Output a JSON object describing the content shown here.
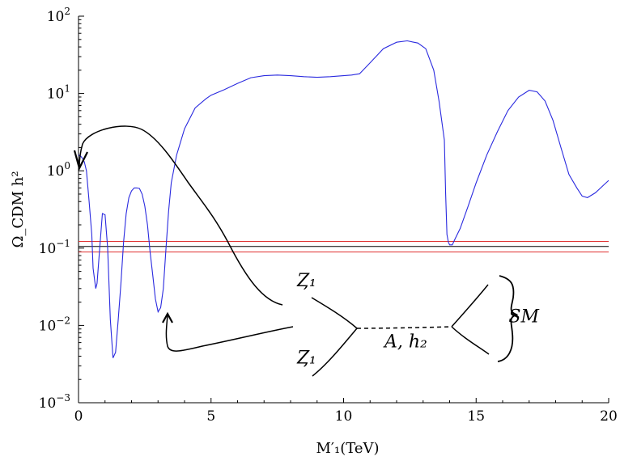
{
  "chart_data": {
    "type": "line",
    "title": "",
    "xlabel": "M′₁(TeV)",
    "ylabel": "Ω_CDM h²",
    "x_scale": "linear",
    "y_scale": "log",
    "xlim": [
      0,
      20
    ],
    "ylim": [
      0.001,
      100
    ],
    "grid": false,
    "x_ticks": [
      {
        "value": 0,
        "label": "0"
      },
      {
        "value": 5,
        "label": "5"
      },
      {
        "value": 10,
        "label": "10"
      },
      {
        "value": 15,
        "label": "15"
      },
      {
        "value": 20,
        "label": "20"
      }
    ],
    "y_ticks": [
      {
        "value": 0.001,
        "base": "10",
        "exp": "−3"
      },
      {
        "value": 0.01,
        "base": "10",
        "exp": "−2"
      },
      {
        "value": 0.1,
        "base": "10",
        "exp": "−1"
      },
      {
        "value": 1,
        "base": "10",
        "exp": "0"
      },
      {
        "value": 10,
        "base": "10",
        "exp": "1"
      },
      {
        "value": 100,
        "base": "10",
        "exp": "2"
      }
    ],
    "horizontal_lines": [
      {
        "y": 0.122,
        "color": "#e03030"
      },
      {
        "y": 0.105,
        "color": "#000000"
      },
      {
        "y": 0.089,
        "color": "#e03030"
      }
    ],
    "series": [
      {
        "color": "#2a2adf",
        "x": [
          0.0,
          0.08,
          0.15,
          0.22,
          0.3,
          0.4,
          0.5,
          0.55,
          0.6,
          0.65,
          0.7,
          0.8,
          0.9,
          1.0,
          1.1,
          1.2,
          1.3,
          1.4,
          1.5,
          1.6,
          1.7,
          1.8,
          1.9,
          2.0,
          2.1,
          2.2,
          2.3,
          2.4,
          2.5,
          2.6,
          2.7,
          2.8,
          2.9,
          3.0,
          3.1,
          3.2,
          3.3,
          3.4,
          3.5,
          3.7,
          4.0,
          4.4,
          4.8,
          5.0,
          5.5,
          6.0,
          6.5,
          7.0,
          7.5,
          8.0,
          8.5,
          9.0,
          9.5,
          10.0,
          10.3,
          10.6,
          11.0,
          11.5,
          12.0,
          12.4,
          12.8,
          13.1,
          13.4,
          13.6,
          13.8,
          13.85,
          13.9,
          13.95,
          14.0,
          14.1,
          14.2,
          14.4,
          14.7,
          15.0,
          15.4,
          15.8,
          16.2,
          16.6,
          17.0,
          17.3,
          17.6,
          17.9,
          18.2,
          18.5,
          18.8,
          19.0,
          19.2,
          19.5,
          19.8,
          20.0
        ],
        "y": [
          1.6,
          1.55,
          1.45,
          1.3,
          1.0,
          0.4,
          0.15,
          0.055,
          0.04,
          0.03,
          0.035,
          0.1,
          0.28,
          0.27,
          0.1,
          0.012,
          0.0038,
          0.0045,
          0.012,
          0.035,
          0.12,
          0.28,
          0.45,
          0.55,
          0.6,
          0.6,
          0.59,
          0.5,
          0.35,
          0.2,
          0.09,
          0.045,
          0.022,
          0.015,
          0.017,
          0.03,
          0.1,
          0.3,
          0.7,
          1.6,
          3.5,
          6.5,
          8.5,
          9.5,
          11.2,
          13.5,
          16.0,
          17.0,
          17.3,
          17.0,
          16.5,
          16.2,
          16.5,
          17.0,
          17.3,
          18.0,
          25.0,
          38.0,
          46.0,
          48.0,
          45.0,
          38.0,
          20.0,
          8.0,
          2.5,
          0.5,
          0.15,
          0.12,
          0.11,
          0.11,
          0.13,
          0.18,
          0.35,
          0.7,
          1.6,
          3.2,
          6.0,
          9.0,
          11.0,
          10.5,
          8.0,
          4.5,
          2.0,
          0.9,
          0.6,
          0.47,
          0.45,
          0.52,
          0.65,
          0.75
        ]
      }
    ],
    "annotations": [
      {
        "text": "Ȥ₁",
        "x": 8.6,
        "y": 0.032
      },
      {
        "text": "Ȥ₁",
        "x": 8.6,
        "y": 0.0032
      },
      {
        "text": "A, h₂",
        "x": 12.35,
        "y": 0.0052
      },
      {
        "text": "SM",
        "x": 16.8,
        "y": 0.011
      }
    ]
  }
}
